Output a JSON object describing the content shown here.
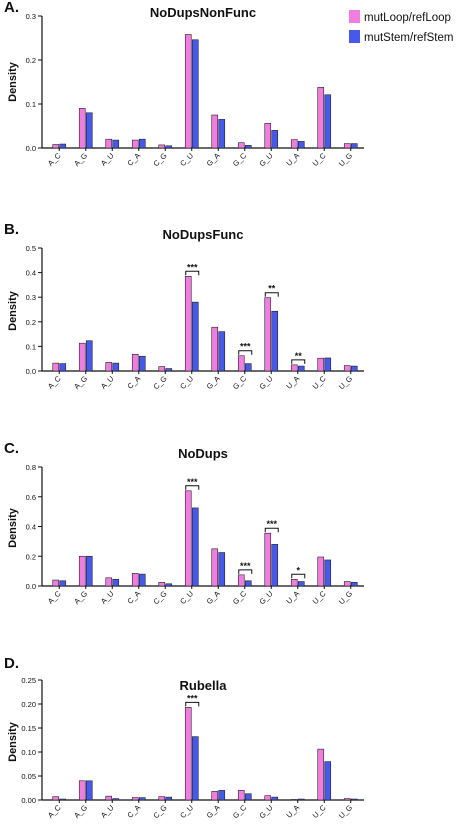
{
  "legend": [
    {
      "name": "mutLoop/refLoop",
      "color": "#f07de0"
    },
    {
      "name": "mutStem/refStem",
      "color": "#4659e8"
    }
  ],
  "chart_data": [
    {
      "panel": "A.",
      "title": "NoDupsNonFunc",
      "type": "bar",
      "ylabel": "Density",
      "ylim": [
        0,
        0.3
      ],
      "yticks": [
        0,
        0.1,
        0.2,
        0.3
      ],
      "ytick_labels": [
        "0.0",
        "0.1",
        "0.2",
        "0.3"
      ],
      "categories": [
        "A_C",
        "A_G",
        "A_U",
        "C_A",
        "C_G",
        "C_U",
        "G_A",
        "G_C",
        "G_U",
        "U_A",
        "U_C",
        "U_G"
      ],
      "series": [
        {
          "name": "mutLoop/refLoop",
          "values": [
            0.008,
            0.09,
            0.02,
            0.018,
            0.007,
            0.258,
            0.075,
            0.012,
            0.056,
            0.019,
            0.138,
            0.01
          ]
        },
        {
          "name": "mutStem/refStem",
          "values": [
            0.009,
            0.08,
            0.018,
            0.02,
            0.005,
            0.246,
            0.065,
            0.006,
            0.04,
            0.015,
            0.121,
            0.01
          ]
        }
      ],
      "annotations": []
    },
    {
      "panel": "B.",
      "title": "NoDupsFunc",
      "type": "bar",
      "ylabel": "Density",
      "ylim": [
        0,
        0.5
      ],
      "yticks": [
        0,
        0.1,
        0.2,
        0.3,
        0.4,
        0.5
      ],
      "ytick_labels": [
        "0.0",
        "0.1",
        "0.2",
        "0.3",
        "0.4",
        "0.5"
      ],
      "categories": [
        "A_C",
        "A_G",
        "A_U",
        "C_A",
        "C_G",
        "C_U",
        "G_A",
        "G_C",
        "G_U",
        "U_A",
        "U_C",
        "U_G"
      ],
      "series": [
        {
          "name": "mutLoop/refLoop",
          "values": [
            0.032,
            0.113,
            0.035,
            0.068,
            0.018,
            0.385,
            0.178,
            0.062,
            0.298,
            0.025,
            0.052,
            0.022
          ]
        },
        {
          "name": "mutStem/refStem",
          "values": [
            0.03,
            0.123,
            0.032,
            0.06,
            0.01,
            0.28,
            0.16,
            0.03,
            0.243,
            0.02,
            0.053,
            0.02
          ]
        }
      ],
      "annotations": [
        {
          "category": "C_U",
          "label": "***"
        },
        {
          "category": "G_C",
          "label": "***"
        },
        {
          "category": "G_U",
          "label": "**"
        },
        {
          "category": "U_A",
          "label": "**"
        }
      ]
    },
    {
      "panel": "C.",
      "title": "NoDups",
      "type": "bar",
      "ylabel": "Density",
      "ylim": [
        0,
        0.8
      ],
      "yticks": [
        0,
        0.2,
        0.4,
        0.6,
        0.8
      ],
      "ytick_labels": [
        "0.0",
        "0.2",
        "0.4",
        "0.6",
        "0.8"
      ],
      "categories": [
        "A_C",
        "A_G",
        "A_U",
        "C_A",
        "C_G",
        "C_U",
        "G_A",
        "G_C",
        "G_U",
        "U_A",
        "U_C",
        "U_G"
      ],
      "series": [
        {
          "name": "mutLoop/refLoop",
          "values": [
            0.04,
            0.2,
            0.055,
            0.085,
            0.025,
            0.64,
            0.25,
            0.075,
            0.355,
            0.045,
            0.195,
            0.03
          ]
        },
        {
          "name": "mutStem/refStem",
          "values": [
            0.035,
            0.2,
            0.045,
            0.08,
            0.015,
            0.525,
            0.225,
            0.035,
            0.28,
            0.03,
            0.175,
            0.025
          ]
        }
      ],
      "annotations": [
        {
          "category": "C_U",
          "label": "***"
        },
        {
          "category": "G_C",
          "label": "***"
        },
        {
          "category": "G_U",
          "label": "***"
        },
        {
          "category": "U_A",
          "label": "*"
        }
      ]
    },
    {
      "panel": "D.",
      "title": "Rubella",
      "type": "bar",
      "ylabel": "Density",
      "ylim": [
        0,
        0.25
      ],
      "yticks": [
        0,
        0.05,
        0.1,
        0.15,
        0.2,
        0.25
      ],
      "ytick_labels": [
        "0.00",
        "0.05",
        "0.10",
        "0.15",
        "0.20",
        "0.25"
      ],
      "categories": [
        "A_C",
        "A_G",
        "A_U",
        "C_A",
        "C_G",
        "C_U",
        "G_A",
        "G_C",
        "G_U",
        "U_A",
        "U_C",
        "U_G"
      ],
      "series": [
        {
          "name": "mutLoop/refLoop",
          "values": [
            0.007,
            0.04,
            0.008,
            0.005,
            0.007,
            0.193,
            0.018,
            0.02,
            0.009,
            0.001,
            0.106,
            0.003
          ]
        },
        {
          "name": "mutStem/refStem",
          "values": [
            0.002,
            0.04,
            0.003,
            0.005,
            0.006,
            0.132,
            0.02,
            0.013,
            0.006,
            0.002,
            0.08,
            0.002
          ]
        }
      ],
      "annotations": [
        {
          "category": "C_U",
          "label": "***"
        }
      ]
    }
  ]
}
